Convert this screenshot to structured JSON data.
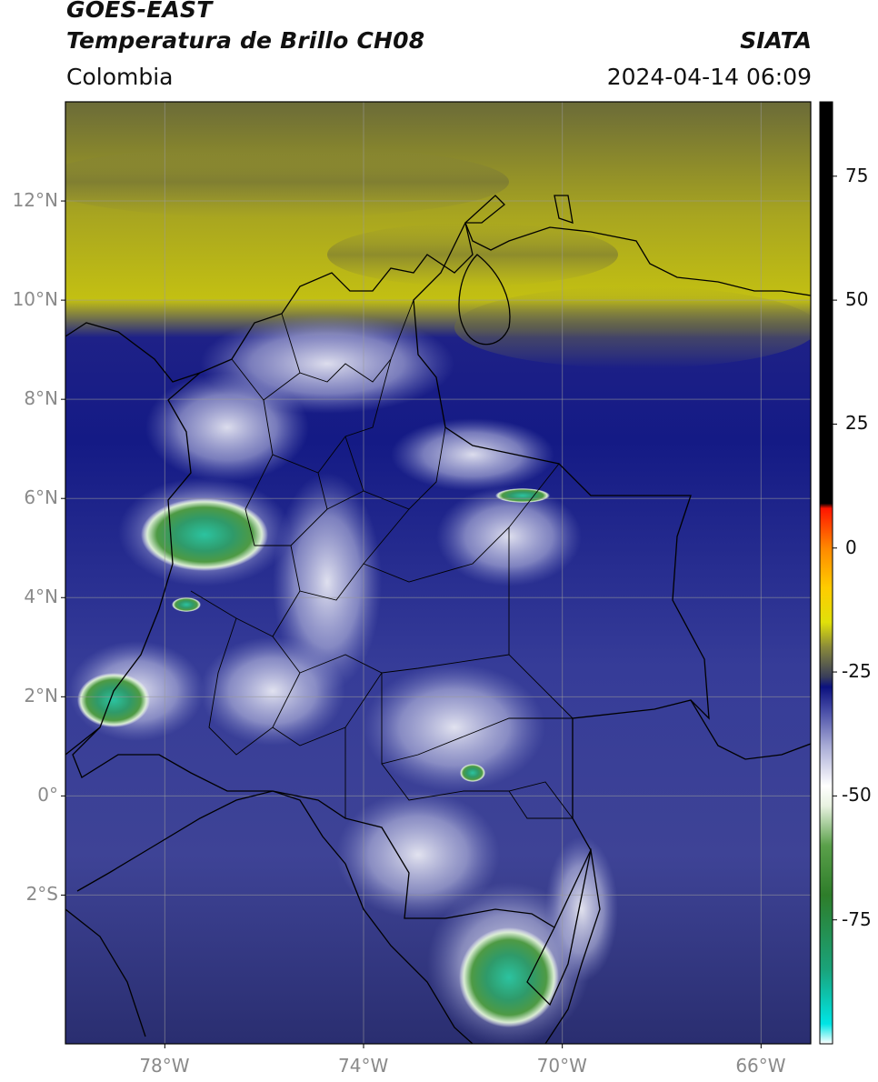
{
  "header": {
    "satellite": "GOES-EAST",
    "product": "Temperatura de Brillo CH08",
    "agency": "SIATA",
    "region": "Colombia",
    "datetime": "2024-04-14 06:09"
  },
  "map": {
    "lon_range": [
      -80,
      -65
    ],
    "lat_range": [
      -5,
      14
    ],
    "lat_ticks": [
      {
        "value": 12,
        "label": "12°N"
      },
      {
        "value": 10,
        "label": "10°N"
      },
      {
        "value": 8,
        "label": "8°N"
      },
      {
        "value": 6,
        "label": "6°N"
      },
      {
        "value": 4,
        "label": "4°N"
      },
      {
        "value": 2,
        "label": "2°N"
      },
      {
        "value": 0,
        "label": "0°"
      },
      {
        "value": -2,
        "label": "2°S"
      }
    ],
    "lon_ticks": [
      {
        "value": -78,
        "label": "78°W"
      },
      {
        "value": -74,
        "label": "74°W"
      },
      {
        "value": -70,
        "label": "70°W"
      },
      {
        "value": -66,
        "label": "66°W"
      }
    ],
    "gridlines": true
  },
  "colorbar": {
    "range": [
      -100,
      90
    ],
    "unit_hint": "°C",
    "ticks": [
      {
        "value": 75,
        "label": "75"
      },
      {
        "value": 50,
        "label": "50"
      },
      {
        "value": 25,
        "label": "25"
      },
      {
        "value": 0,
        "label": "0"
      },
      {
        "value": -25,
        "label": "-25"
      },
      {
        "value": -50,
        "label": "-50"
      },
      {
        "value": -75,
        "label": "-75"
      }
    ],
    "stops": [
      {
        "value": -100,
        "color": "#ffffff"
      },
      {
        "value": -96,
        "color": "#00e5e5"
      },
      {
        "value": -85,
        "color": "#1aa37a"
      },
      {
        "value": -70,
        "color": "#2e7d2a"
      },
      {
        "value": -60,
        "color": "#5aa04a"
      },
      {
        "value": -52,
        "color": "#e8f2e0"
      },
      {
        "value": -48,
        "color": "#ffffff"
      },
      {
        "value": -40,
        "color": "#a9acd6"
      },
      {
        "value": -33,
        "color": "#4a4fa8"
      },
      {
        "value": -28,
        "color": "#0b117e"
      },
      {
        "value": -26,
        "color": "#383d5a"
      },
      {
        "value": -20,
        "color": "#8a8a3a"
      },
      {
        "value": -15,
        "color": "#e0e00a"
      },
      {
        "value": -8,
        "color": "#ffcc00"
      },
      {
        "value": 0,
        "color": "#ff8800"
      },
      {
        "value": 8,
        "color": "#ff1500"
      },
      {
        "value": 9,
        "color": "#000000"
      },
      {
        "value": 90,
        "color": "#000000"
      }
    ]
  }
}
